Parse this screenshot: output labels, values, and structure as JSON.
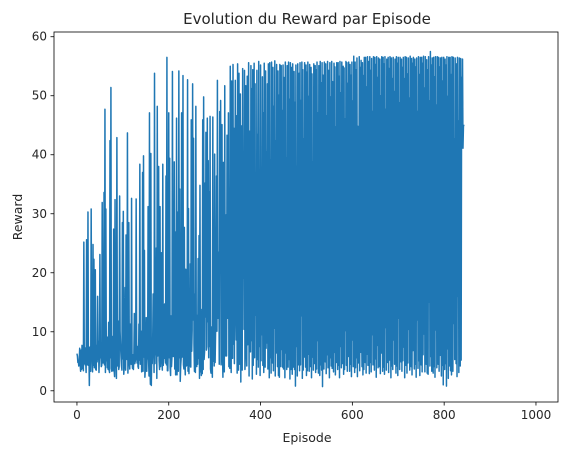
{
  "chart_data": {
    "type": "line",
    "title": "Evolution du Reward par Episode",
    "xlabel": "Episode",
    "ylabel": "Reward",
    "xlim": [
      -50,
      1048
    ],
    "ylim": [
      -1.9,
      60.8
    ],
    "x_ticks": [
      0,
      200,
      400,
      600,
      800,
      1000
    ],
    "y_ticks": [
      0,
      10,
      20,
      30,
      40,
      50,
      60
    ],
    "grid": false,
    "legend": "none",
    "series": [
      {
        "color": "#1f77b4",
        "x_start": 0,
        "x_step": 1,
        "values": [
          6.3,
          5.9,
          4.8,
          5.1,
          4.2,
          5.3,
          7.2,
          4.5,
          3.3,
          6.9,
          3.6,
          7.7,
          3.8,
          6.1,
          3.4,
          25.2,
          4.6,
          7.3,
          4.4,
          5.2,
          3.1,
          25.6,
          6.2,
          4.4,
          30.3,
          4.3,
          6.6,
          0.9,
          7.4,
          5.6,
          3.3,
          30.8,
          8.3,
          5.9,
          3.2,
          24.8,
          4.3,
          22.3,
          3.9,
          5.2,
          20.5,
          3.6,
          3.5,
          7.7,
          4.9,
          16.0,
          5.3,
          8.4,
          3.1,
          6.1,
          23.1,
          5.6,
          6.9,
          4.1,
          4.3,
          31.9,
          8.6,
          4.7,
          5.0,
          33.6,
          4.4,
          47.7,
          3.1,
          30.8,
          5.1,
          7.2,
          3.9,
          9.1,
          3.6,
          11.6,
          3.6,
          3.1,
          42.4,
          5.6,
          51.4,
          3.8,
          3.3,
          9.2,
          4.3,
          3.4,
          27.4,
          3.6,
          2.4,
          32.4,
          8.1,
          4.8,
          2.1,
          42.9,
          8.1,
          4.2,
          11.8,
          3.6,
          4.1,
          33.0,
          10.1,
          7.5,
          5.7,
          4.3,
          3.5,
          28.5,
          5.4,
          30.4,
          2.8,
          4.3,
          9.0,
          17.5,
          3.5,
          26.4,
          8.6,
          5.3,
          43.7,
          3.0,
          6.4,
          28.5,
          5.4,
          3.7,
          11.3,
          7.8,
          4.5,
          32.6,
          5.4,
          3.8,
          6.1,
          3.6,
          5.9,
          13.1,
          4.6,
          5.0,
          5.5,
          32.5,
          8.1,
          4.7,
          7.5,
          4.1,
          3.8,
          11.3,
          5.2,
          38.4,
          4.5,
          6.0,
          10.1,
          3.2,
          5.5,
          37.0,
          3.3,
          39.8,
          5.7,
          23.8,
          2.3,
          3.7,
          7.2,
          12.4,
          3.3,
          6.9,
          5.4,
          31.2,
          5.5,
          2.5,
          47.1,
          4.7,
          1.1,
          40.2,
          0.9,
          6.6,
          4.6,
          8.4,
          16.4,
          8.9,
          3.1,
          53.8,
          4.6,
          9.2,
          6.1,
          24.2,
          2.1,
          48.2,
          5.9,
          7.6,
          38.0,
          5.1,
          3.6,
          31.2,
          4.1,
          8.3,
          23.4,
          5.5,
          3.5,
          38.4,
          4.3,
          6.2,
          5.5,
          14.7,
          7.2,
          4.7,
          36.4,
          4.4,
          56.5,
          3.4,
          3.4,
          7.7,
          47.1,
          5.6,
          39.4,
          4.0,
          2.6,
          12.7,
          4.1,
          5.8,
          54.1,
          9.3,
          5.8,
          6.8,
          38.8,
          3.7,
          26.9,
          2.7,
          4.6,
          46.2,
          2.7,
          8.7,
          30.3,
          3.3,
          54.2,
          5.6,
          34.2,
          1.6,
          4.2,
          5.5,
          47.1,
          5.7,
          7.9,
          53.4,
          4.4,
          3.7,
          27.7,
          4.8,
          2.7,
          20.6,
          4.2,
          4.3,
          4.6,
          52.7,
          3.3,
          30.9,
          2.9,
          10.9,
          4.2,
          21.5,
          4.0,
          45.9,
          6.7,
          10.3,
          52.0,
          12.0,
          42.8,
          7.8,
          3.3,
          16.4,
          3.1,
          48.2,
          4.2,
          4.1,
          12.8,
          4.5,
          22.4,
          5.5,
          26.3,
          2.1,
          34.8,
          3.2,
          8.6,
          2.6,
          13.8,
          2.9,
          45.9,
          3.6,
          49.8,
          5.3,
          6.6,
          35.2,
          12.5,
          43.8,
          6.9,
          7.5,
          46.2,
          11.7,
          39.0,
          5.6,
          33.7,
          7.5,
          46.5,
          3.7,
          3.0,
          10.8,
          5.3,
          2.3,
          46.4,
          5.0,
          25.7,
          4.2,
          40.1,
          4.8,
          9.8,
          11.2,
          36.4,
          10.1,
          52.6,
          12.3,
          19.5,
          23.5,
          4.5,
          47.3,
          23.7,
          49.2,
          4.4,
          9.5,
          45.1,
          6.5,
          2.3,
          38.7,
          7.7,
          3.2,
          51.7,
          5.9,
          13.7,
          29.8,
          5.9,
          43.3,
          12.3,
          14.8,
          47.1,
          4.1,
          28.1,
          3.8,
          55.0,
          9.8,
          3.1,
          52.5,
          28.6,
          5.5,
          55.3,
          7.9,
          44.5,
          4.6,
          23.5,
          52.6,
          15.3,
          8.6,
          46.6,
          3.0,
          55.4,
          9.6,
          3.5,
          53.8,
          21.2,
          4.5,
          50.3,
          1.5,
          44.9,
          33.5,
          3.5,
          54.6,
          19.1,
          37.8,
          10.4,
          54.3,
          3.6,
          6.5,
          51.7,
          24.9,
          4.2,
          53.3,
          7.8,
          13.2,
          55.6,
          2.5,
          44.0,
          24.3,
          6.6,
          55.1,
          8.5,
          51.2,
          2.0,
          54.4,
          4.3,
          19.6,
          55.5,
          5.6,
          52.0,
          12.8,
          31.7,
          2.8,
          54.3,
          5.3,
          43.4,
          4.0,
          55.8,
          7.5,
          27.8,
          2.6,
          55.2,
          5.1,
          36.0,
          9.5,
          53.2,
          4.3,
          47.1,
          3.1,
          55.5,
          19.6,
          4.0,
          54.2,
          7.2,
          40.5,
          8.1,
          52.0,
          3.7,
          55.4,
          13.6,
          2.2,
          55.6,
          5.6,
          39.1,
          3.0,
          55.7,
          22.7,
          4.7,
          54.8,
          3.4,
          48.2,
          10.6,
          55.9,
          2.5,
          42.3,
          6.4,
          55.3,
          15.8,
          4.1,
          54.2,
          2.6,
          50.1,
          2.3,
          55.3,
          22.4,
          4.1,
          55.1,
          7.0,
          47.5,
          4.0,
          55.2,
          3.7,
          53.1,
          27.4,
          2.2,
          55.7,
          6.4,
          39.5,
          3.6,
          55.1,
          15.7,
          4.0,
          55.7,
          5.3,
          49.4,
          2.0,
          55.6,
          3.6,
          54.8,
          10.8,
          2.8,
          55.4,
          27.6,
          4.0,
          54.1,
          3.6,
          48.9,
          0.8,
          55.2,
          7.5,
          38.0,
          2.5,
          55.4,
          20.1,
          4.4,
          53.8,
          3.4,
          55.6,
          4.4,
          49.2,
          12.7,
          55.7,
          2.1,
          54.4,
          3.5,
          42.7,
          5.7,
          55.6,
          29.6,
          4.0,
          55.2,
          2.6,
          54.0,
          3.4,
          55.7,
          6.2,
          49.9,
          3.3,
          55.3,
          13.5,
          4.1,
          54.8,
          2.2,
          53.7,
          5.7,
          38.8,
          3.5,
          55.4,
          27.8,
          4.6,
          55.1,
          3.1,
          54.4,
          3.7,
          55.7,
          8.5,
          47.1,
          3.0,
          55.1,
          18.7,
          2.6,
          55.8,
          4.4,
          52.2,
          3.5,
          55.6,
          0.7,
          53.5,
          11.4,
          3.7,
          55.7,
          25.9,
          4.9,
          55.4,
          2.9,
          46.6,
          6.1,
          55.8,
          3.9,
          54.3,
          17.5,
          2.2,
          55.6,
          5.6,
          49.8,
          4.2,
          55.8,
          3.8,
          52.4,
          29.4,
          3.2,
          55.5,
          6.5,
          54.9,
          2.7,
          44.7,
          4.8,
          55.6,
          14.5,
          3.6,
          55.6,
          4.3,
          53.3,
          2.2,
          55.8,
          7.5,
          50.5,
          3.9,
          55.7,
          22.3,
          4.6,
          55.0,
          2.8,
          54.7,
          3.6,
          46.1,
          10.2,
          55.8,
          4.3,
          55.6,
          3.3,
          52.1,
          5.8,
          55.7,
          26.6,
          3.3,
          55.3,
          4.5,
          53.5,
          2.4,
          55.7,
          8.6,
          49.1,
          4.1,
          56.7,
          17.6,
          3.1,
          55.7,
          3.9,
          54.4,
          5.6,
          56.4,
          2.4,
          44.8,
          31.6,
          4.7,
          56.6,
          3.4,
          54.8,
          6.5,
          56.0,
          12.7,
          4.1,
          55.6,
          2.7,
          53.4,
          3.6,
          56.5,
          22.6,
          4.8,
          56.5,
          3.0,
          51.5,
          6.2,
          56.6,
          4.3,
          55.8,
          16.5,
          2.9,
          56.6,
          4.8,
          54.3,
          3.2,
          56.3,
          9.5,
          47.3,
          4.4,
          56.6,
          28.8,
          3.5,
          56.5,
          5.4,
          55.3,
          2.3,
          56.6,
          7.7,
          53.1,
          3.9,
          56.4,
          14.9,
          4.1,
          56.2,
          2.9,
          50.0,
          6.4,
          56.6,
          21.9,
          3.3,
          56.5,
          4.0,
          55.4,
          2.8,
          56.6,
          10.7,
          47.7,
          3.5,
          56.2,
          26.4,
          4.8,
          56.5,
          3.1,
          54.6,
          5.2,
          56.6,
          14.2,
          2.2,
          56.4,
          4.2,
          52.9,
          3.6,
          56.5,
          8.6,
          50.7,
          4.5,
          56.2,
          30.0,
          3.0,
          56.6,
          4.2,
          55.5,
          2.6,
          56.5,
          12.3,
          48.8,
          3.6,
          56.5,
          18.8,
          4.9,
          56.2,
          3.3,
          54.8,
          5.1,
          56.5,
          7.4,
          52.9,
          2.2,
          56.6,
          25.4,
          4.3,
          56.5,
          3.0,
          53.7,
          4.7,
          56.4,
          10.4,
          49.6,
          3.5,
          56.7,
          16.6,
          4.1,
          56.3,
          2.7,
          55.5,
          6.8,
          56.5,
          28.4,
          3.7,
          56.2,
          4.5,
          54.9,
          2.3,
          56.4,
          12.0,
          47.3,
          3.8,
          56.6,
          5.1,
          53.6,
          2.6,
          56.5,
          20.6,
          4.4,
          56.5,
          3.2,
          55.5,
          6.1,
          56.7,
          9.6,
          51.3,
          3.2,
          56.6,
          27.7,
          4.5,
          56.1,
          3.0,
          54.4,
          2.8,
          56.6,
          15.0,
          49.1,
          4.2,
          57.5,
          5.8,
          55.2,
          3.3,
          56.4,
          22.0,
          3.0,
          56.5,
          4.1,
          53.2,
          2.3,
          56.6,
          10.3,
          48.4,
          3.9,
          56.6,
          30.8,
          4.5,
          56.5,
          3.3,
          54.9,
          6.0,
          56.4,
          14.6,
          2.5,
          56.5,
          4.3,
          52.5,
          1.0,
          56.5,
          23.0,
          3.6,
          56.2,
          4.6,
          55.2,
          0.8,
          56.6,
          7.1,
          49.9,
          2.1,
          56.5,
          18.1,
          4.2,
          56.5,
          3.4,
          53.6,
          2.7,
          56.6,
          34.4,
          3.3,
          56.5,
          11.4,
          42.7,
          5.3,
          56.4,
          29.7,
          4.6,
          55.4,
          2.4,
          56.5,
          16.0,
          45.7,
          3.1,
          56.4,
          31.2,
          4.2,
          56.3,
          5.2,
          53.1,
          43.4,
          56.2,
          41.1,
          44.8,
          45.1
        ]
      }
    ]
  }
}
